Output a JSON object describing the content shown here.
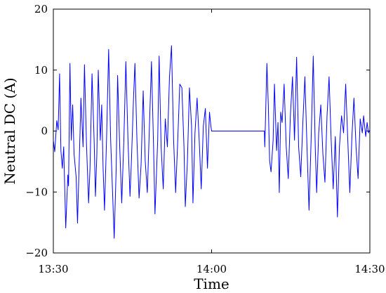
{
  "chart_data": {
    "type": "line",
    "xlabel": "Time",
    "ylabel": "Neutral DC (A)",
    "xlim": [
      "13:30",
      "14:30"
    ],
    "ylim": [
      -20,
      20
    ],
    "xticks": [
      "13:30",
      "14:00",
      "14:30"
    ],
    "yticks": [
      -20,
      -10,
      0,
      10,
      20
    ],
    "ytick_labels": [
      "−20",
      "−10",
      "0",
      "10",
      "20"
    ],
    "grid": false,
    "x": [
      "13:30:00",
      "13:30:16",
      "13:30:39",
      "13:30:55",
      "13:31:11",
      "13:31:26",
      "13:31:42",
      "13:31:58",
      "13:32:21",
      "13:32:45",
      "13:32:53",
      "13:33:09",
      "13:33:24",
      "13:33:40",
      "13:33:56",
      "13:34:19",
      "13:34:35",
      "13:34:59",
      "13:35:14",
      "13:35:38",
      "13:35:54",
      "13:36:17",
      "13:36:41",
      "13:36:57",
      "13:37:20",
      "13:37:44",
      "13:37:59",
      "13:38:15",
      "13:38:31",
      "13:38:54",
      "13:39:10",
      "13:39:26",
      "13:39:42",
      "13:40:05",
      "13:40:29",
      "13:40:52",
      "13:41:08",
      "13:41:32",
      "13:41:55",
      "13:42:11",
      "13:42:35",
      "13:42:58",
      "13:43:22",
      "13:43:45",
      "13:44:09",
      "13:44:32",
      "13:44:48",
      "13:45:12",
      "13:45:28",
      "13:45:51",
      "13:46:15",
      "13:46:38",
      "13:47:02",
      "13:47:25",
      "13:47:49",
      "13:48:13",
      "13:48:36",
      "13:49:00",
      "13:49:16",
      "13:49:47",
      "13:50:03",
      "13:50:26",
      "13:50:50",
      "13:51:13",
      "13:51:37",
      "13:52:01",
      "13:52:24",
      "13:52:48",
      "13:53:11",
      "13:53:35",
      "13:53:58",
      "13:54:22",
      "13:54:46",
      "13:55:01",
      "13:55:25",
      "13:55:48",
      "13:56:12",
      "13:56:28",
      "13:56:51",
      "13:57:15",
      "13:57:39",
      "13:58:02",
      "13:58:26",
      "13:58:49",
      "13:59:13",
      "13:59:36",
      "13:59:52",
      "14:00:00",
      "14:10:00",
      "14:10:05",
      "14:10:13",
      "14:10:29",
      "14:10:45",
      "14:11:00",
      "14:11:16",
      "14:11:40",
      "14:11:55",
      "14:12:19",
      "14:12:35",
      "14:12:50",
      "14:13:06",
      "14:13:22",
      "14:13:45",
      "14:14:09",
      "14:14:32",
      "14:14:56",
      "14:15:20",
      "14:15:43",
      "14:16:07",
      "14:16:30",
      "14:16:54",
      "14:17:18",
      "14:17:41",
      "14:18:05",
      "14:18:28",
      "14:18:52",
      "14:19:16",
      "14:19:39",
      "14:19:55",
      "14:20:18",
      "14:20:42",
      "14:21:06",
      "14:21:29",
      "14:21:53",
      "14:22:16",
      "14:22:40",
      "14:23:03",
      "14:23:27",
      "14:23:51",
      "14:24:14",
      "14:24:38",
      "14:25:01",
      "14:25:25",
      "14:25:49",
      "14:26:12",
      "14:26:36",
      "14:26:59",
      "14:27:23",
      "14:27:46",
      "14:28:10",
      "14:28:34",
      "14:28:49",
      "14:29:13",
      "14:29:29",
      "14:29:44",
      "14:30:00"
    ],
    "series": [
      {
        "color": "#0000ff",
        "values": [
          -1.5,
          -3.4,
          1.7,
          0.2,
          9.4,
          -3.2,
          -6.1,
          -2.6,
          -15.9,
          -7.2,
          -9.0,
          11.1,
          -1.5,
          4.3,
          -3.8,
          -7.5,
          -15.1,
          -2.6,
          5.4,
          -2.6,
          10.9,
          -2.1,
          -11.8,
          -6.1,
          9.4,
          -1.5,
          -10.7,
          -3.8,
          10.0,
          -1.5,
          4.3,
          -6.1,
          -13.0,
          -1.5,
          13.4,
          -1.5,
          -7.8,
          -17.6,
          -6.1,
          9.1,
          -2.6,
          -11.8,
          -1.5,
          11.4,
          -1.5,
          -10.7,
          -4.9,
          5.4,
          11.1,
          -1.5,
          -11.0,
          -5.5,
          6.6,
          -4.9,
          -10.1,
          0.8,
          11.4,
          -2.6,
          -13.6,
          -1.5,
          12.3,
          -2.6,
          -9.5,
          2.0,
          -2.6,
          8.9,
          14.0,
          -1.5,
          -10.1,
          -1.5,
          7.7,
          7.1,
          -2.6,
          -12.4,
          -4.9,
          7.1,
          0.8,
          -11.8,
          -0.3,
          5.4,
          -1.5,
          -9.5,
          0.8,
          3.7,
          -6.1,
          3.1,
          0.8,
          0,
          0,
          -2.6,
          2.0,
          11.1,
          4.3,
          -4.9,
          -6.7,
          -1.5,
          7.7,
          -3.2,
          1.4,
          -10.1,
          3.1,
          1.4,
          7.7,
          -2.6,
          -7.8,
          2.5,
          8.9,
          -1.5,
          12.1,
          -2.6,
          -7.5,
          1.4,
          8.9,
          -2.6,
          -13.0,
          -1.5,
          12.3,
          -2.6,
          -10.1,
          -0.3,
          4.3,
          -3.8,
          -8.4,
          2.5,
          8.9,
          -1.5,
          -9.5,
          -0.9,
          -14.1,
          -2.6,
          2.5,
          -0.3,
          7.7,
          -1.5,
          -10.1,
          -0.9,
          5.4,
          -2.6,
          -7.8,
          2.0,
          -0.3,
          2.5,
          -0.9,
          1.4,
          -0.3,
          0.2
        ]
      }
    ]
  }
}
